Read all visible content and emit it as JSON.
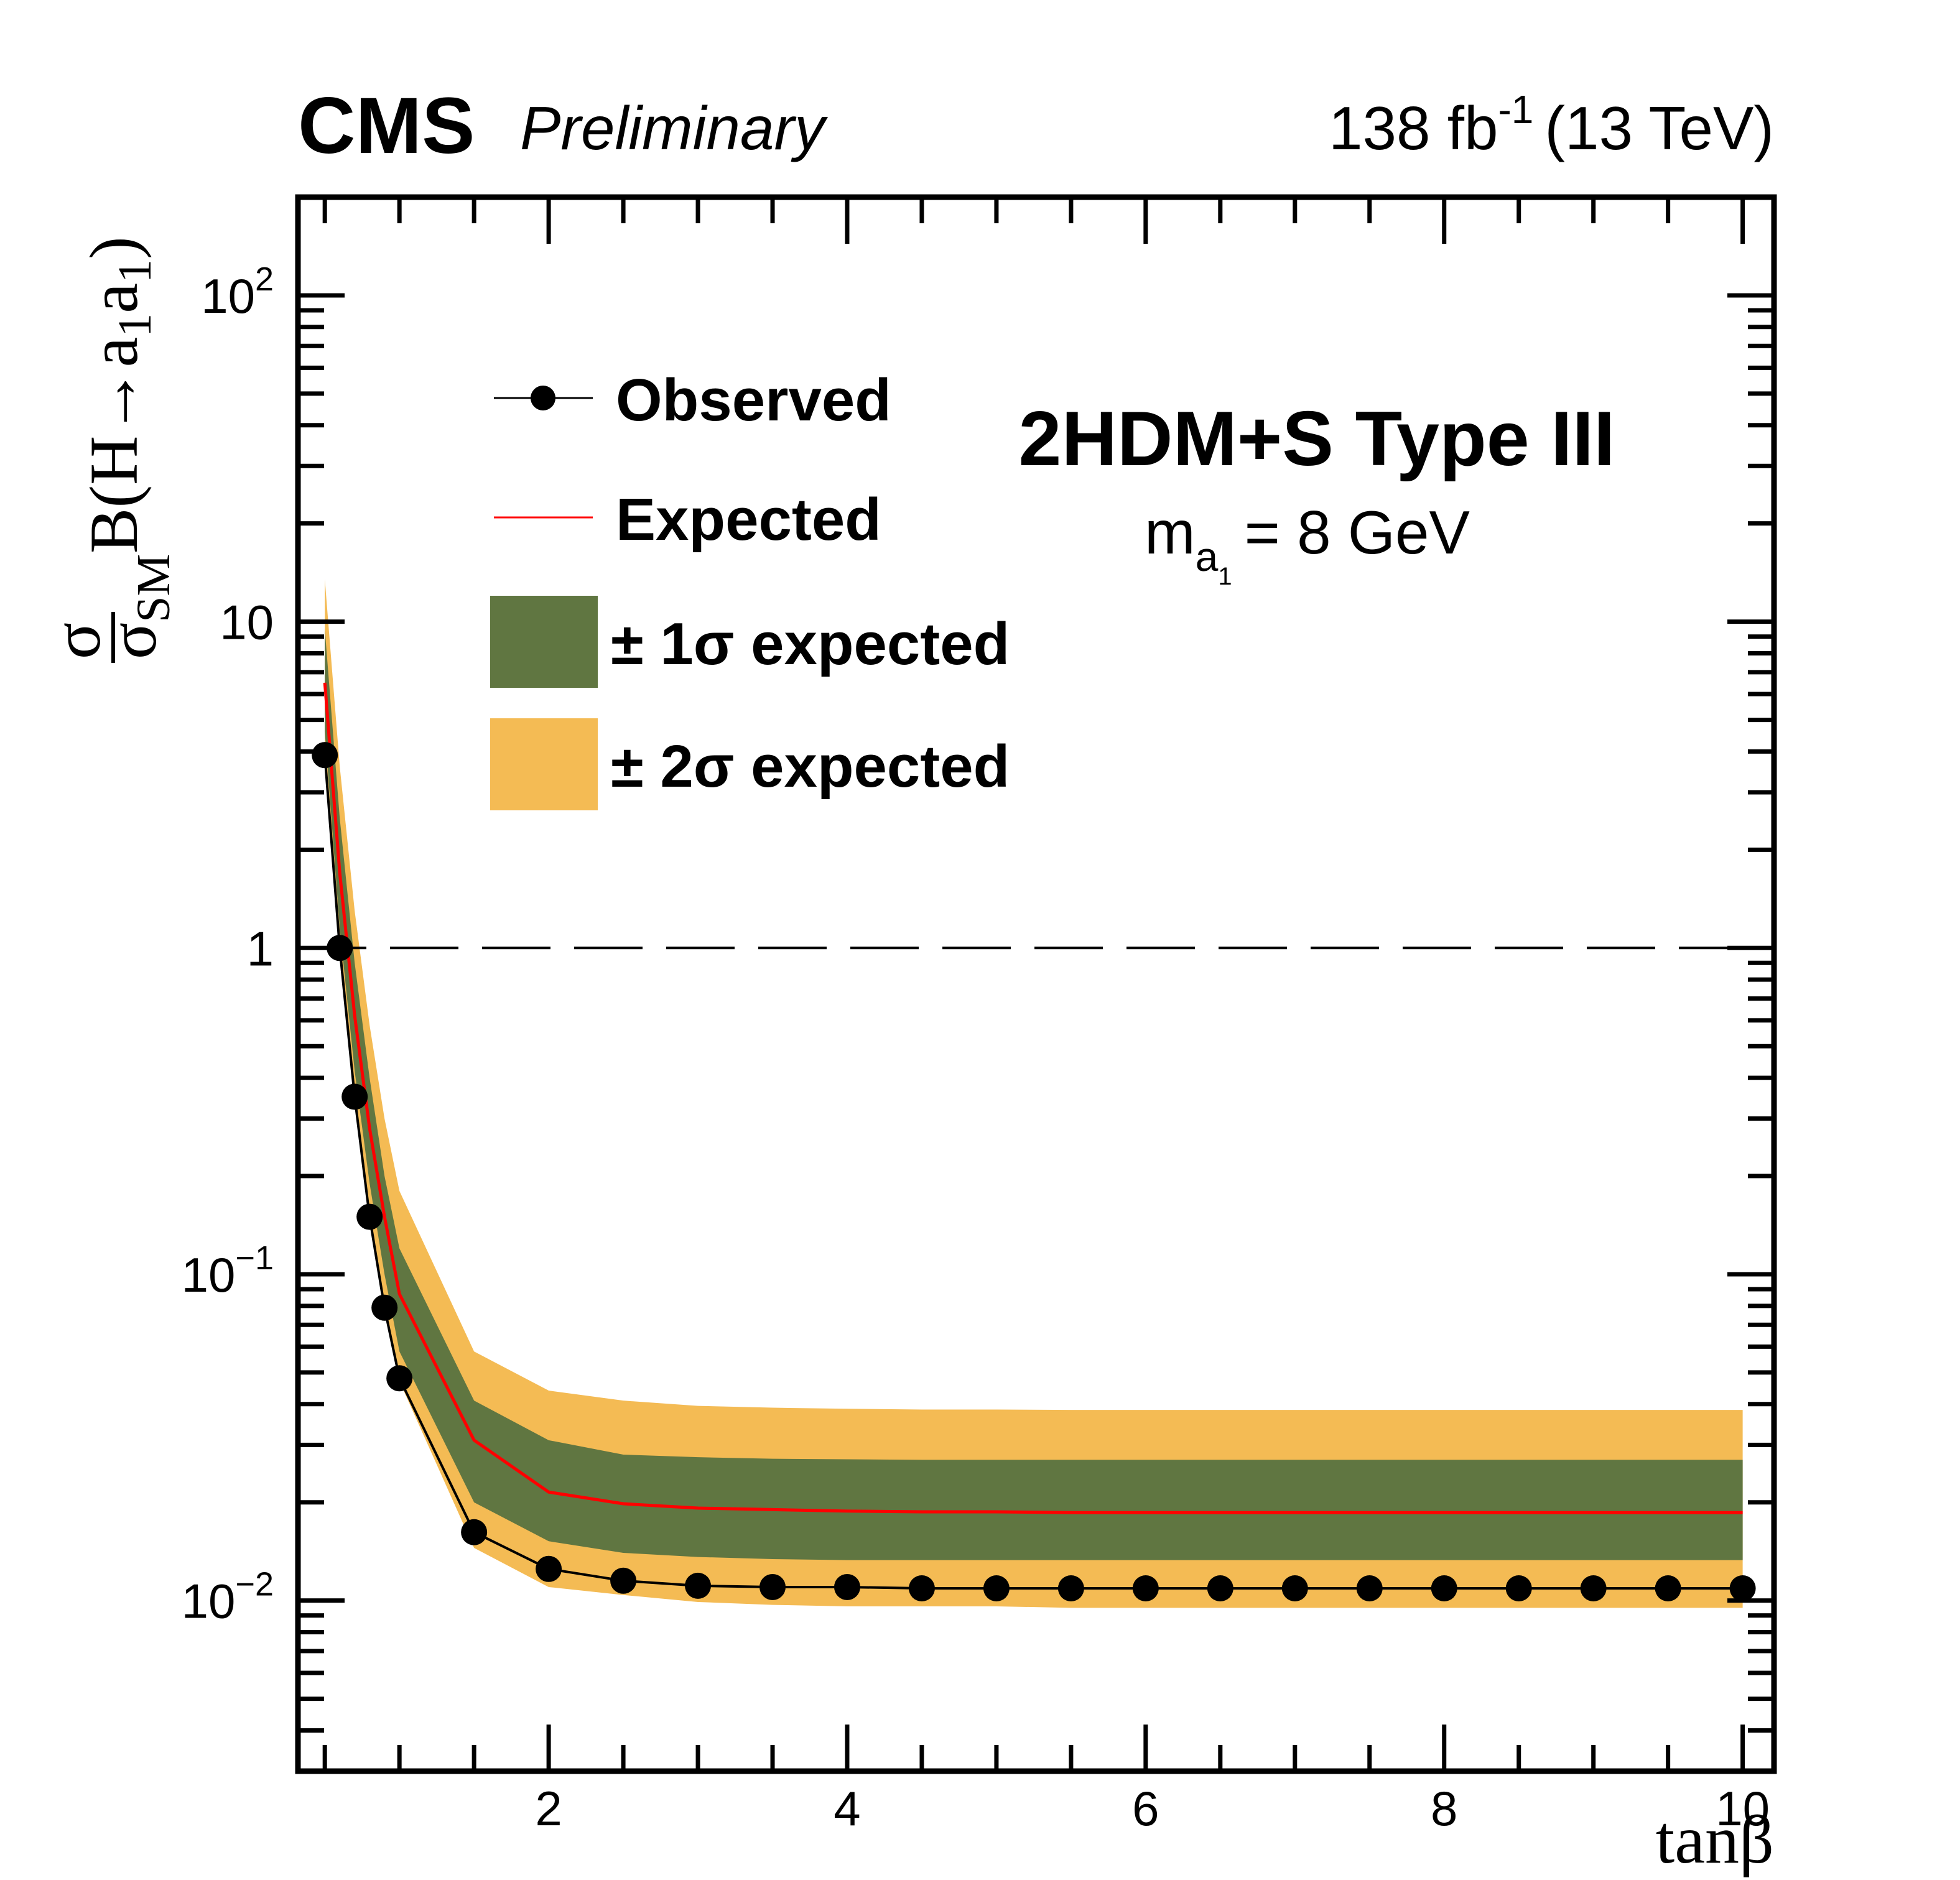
{
  "header": {
    "experiment": "CMS",
    "status": "Preliminary",
    "lumi_value": "138 fb",
    "lumi_exponent": "-1",
    "energy": "(13 TeV)"
  },
  "annotation": {
    "model": "2HDM+S Type III",
    "mass_label_main": "m",
    "mass_label_sub": "a",
    "mass_label_subsub": "1",
    "mass_value": "= 8 GeV"
  },
  "legend": {
    "observed": "Observed",
    "expected": "Expected",
    "one_sigma": "± 1σ expected",
    "two_sigma": "± 2σ expected"
  },
  "colors": {
    "observed": "#000000",
    "expected": "#ff0000",
    "one_sigma": "#607641",
    "two_sigma": "#f4bb54",
    "reference_line": "#000000"
  },
  "chart_data": {
    "type": "line",
    "title": "CMS Preliminary",
    "subtitle": "2HDM+S Type III, m_a1 = 8 GeV",
    "xlabel": "tanβ",
    "ylabel": "σ/σ_SM B(H→a1a1)",
    "xscale": "linear",
    "yscale": "log",
    "xlim": [
      0.32,
      10.21
    ],
    "ylim": [
      0.003,
      200
    ],
    "x_ticks": [
      2,
      4,
      6,
      8,
      10
    ],
    "x_tick_labels": [
      "2",
      "4",
      "6",
      "8",
      "10"
    ],
    "y_ticks": [
      0.01,
      0.1,
      1,
      10,
      100
    ],
    "y_tick_labels": [
      {
        "base": "10",
        "exp": "−2"
      },
      {
        "base": "10",
        "exp": "−1"
      },
      {
        "base": "1",
        "exp": ""
      },
      {
        "base": "10",
        "exp": ""
      },
      {
        "base": "10",
        "exp": "2"
      }
    ],
    "reference_line": {
      "y": 1,
      "style": "dashed"
    },
    "legend_position": "top-left",
    "grid": false,
    "x": [
      0.5,
      0.6,
      0.7,
      0.8,
      0.9,
      1.0,
      1.5,
      2.0,
      2.5,
      3.0,
      3.5,
      4.0,
      4.5,
      5.0,
      5.5,
      6.0,
      6.5,
      7.0,
      7.5,
      8.0,
      8.5,
      9.0,
      9.5,
      10.0
    ],
    "series": [
      {
        "name": "Observed",
        "values": [
          3.9,
          1.0,
          0.35,
          0.15,
          0.079,
          0.048,
          0.0162,
          0.0125,
          0.0115,
          0.0111,
          0.011,
          0.011,
          0.0109,
          0.0109,
          0.0109,
          0.0109,
          0.0109,
          0.0109,
          0.0109,
          0.0109,
          0.0109,
          0.0109,
          0.0109,
          0.0109
        ]
      },
      {
        "name": "Expected",
        "values": [
          6.5,
          1.7,
          0.62,
          0.28,
          0.15,
          0.087,
          0.031,
          0.0215,
          0.0198,
          0.0192,
          0.019,
          0.0188,
          0.0187,
          0.0187,
          0.0186,
          0.0186,
          0.0186,
          0.0186,
          0.0186,
          0.0186,
          0.0186,
          0.0186,
          0.0186,
          0.0186
        ]
      },
      {
        "name": "+1σ expected",
        "values": [
          9.5,
          2.5,
          0.9,
          0.4,
          0.2,
          0.12,
          0.041,
          0.031,
          0.028,
          0.0275,
          0.0272,
          0.0271,
          0.027,
          0.027,
          0.027,
          0.027,
          0.027,
          0.027,
          0.027,
          0.027,
          0.027,
          0.027,
          0.027,
          0.027
        ]
      },
      {
        "name": "-1σ expected",
        "values": [
          4.6,
          1.15,
          0.42,
          0.19,
          0.1,
          0.058,
          0.02,
          0.0152,
          0.014,
          0.0136,
          0.0134,
          0.0133,
          0.0133,
          0.0133,
          0.0133,
          0.0133,
          0.0133,
          0.0133,
          0.0133,
          0.0133,
          0.0133,
          0.0133,
          0.0133,
          0.0133
        ]
      },
      {
        "name": "+2σ expected",
        "values": [
          13.5,
          3.6,
          1.3,
          0.58,
          0.3,
          0.18,
          0.058,
          0.044,
          0.041,
          0.0395,
          0.039,
          0.0387,
          0.0385,
          0.0385,
          0.0384,
          0.0384,
          0.0384,
          0.0384,
          0.0384,
          0.0384,
          0.0384,
          0.0384,
          0.0384,
          0.0384
        ]
      },
      {
        "name": "-2σ expected",
        "values": [
          3.8,
          0.95,
          0.34,
          0.15,
          0.078,
          0.047,
          0.0145,
          0.011,
          0.0104,
          0.0099,
          0.0097,
          0.0096,
          0.0096,
          0.0096,
          0.0095,
          0.0095,
          0.0095,
          0.0095,
          0.0095,
          0.0095,
          0.0095,
          0.0095,
          0.0095,
          0.0095
        ]
      }
    ]
  }
}
